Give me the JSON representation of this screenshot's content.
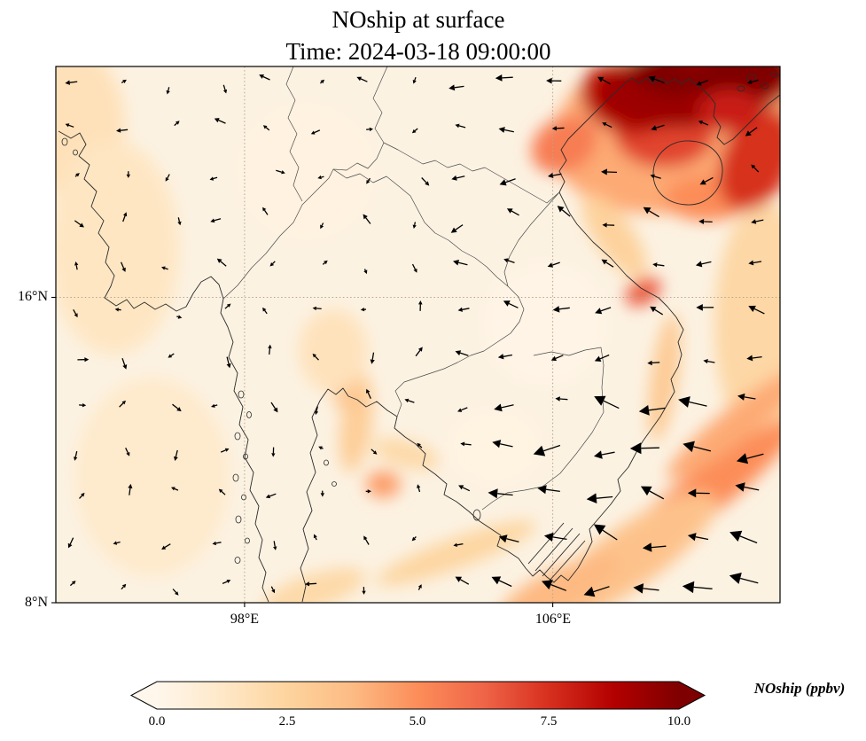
{
  "chart_data": {
    "type": "heatmap",
    "title": "NOship at surface",
    "subtitle": "Time: 2024-03-18 09:00:00",
    "variable": "NOship",
    "level": "surface",
    "time": "2024-03-18 09:00:00",
    "axes": {
      "lon_min": 93.1,
      "lon_max": 111.9,
      "lat_min": 8.0,
      "lat_max": 22.05,
      "lat_ticks": [
        {
          "label": "16°N",
          "value": 16
        },
        {
          "label": "8°N",
          "value": 8
        }
      ],
      "lon_ticks": [
        {
          "label": "98°E",
          "value": 98
        },
        {
          "label": "106°E",
          "value": 106
        }
      ],
      "grid": "dotted"
    },
    "colorbar": {
      "label": "NOship (ppbv)",
      "ticks": [
        "0.0",
        "2.5",
        "5.0",
        "7.5",
        "10.0"
      ],
      "tick_values": [
        0,
        2.5,
        5,
        7.5,
        10
      ],
      "vmin": 0,
      "vmax": 10,
      "extend": "both",
      "orientation": "horizontal"
    },
    "colormap": {
      "name": "OrRd",
      "stops": [
        "#fff7ec",
        "#fee8c8",
        "#fdd49e",
        "#fdbb84",
        "#fc8d59",
        "#ef6548",
        "#d7301f",
        "#b30000",
        "#7f0000"
      ]
    },
    "hotspots": [
      {
        "lon": 105.8,
        "lat": 15.3,
        "rx": 1.6,
        "ry": 1.6,
        "rot": 0,
        "value": 0.25
      },
      {
        "lon": 99.6,
        "lat": 19.3,
        "rx": 1.8,
        "ry": 1.8,
        "rot": 0,
        "value": 0.4
      },
      {
        "lon": 104.5,
        "lat": 12.1,
        "rx": 1.3,
        "ry": 1.1,
        "rot": 0,
        "value": 0.35
      },
      {
        "lon": 93.6,
        "lat": 20.5,
        "rx": 1.3,
        "ry": 2.0,
        "rot": 0,
        "value": 1.7
      },
      {
        "lon": 94.6,
        "lat": 17.3,
        "rx": 1.7,
        "ry": 2.8,
        "rot": 0,
        "value": 1.4
      },
      {
        "lon": 95.6,
        "lat": 11.3,
        "rx": 2.0,
        "ry": 2.6,
        "rot": 0,
        "value": 1.1
      },
      {
        "lon": 100.3,
        "lat": 14.6,
        "rx": 0.9,
        "ry": 1.1,
        "rot": 0,
        "value": 1.6
      },
      {
        "lon": 111.5,
        "lat": 15.3,
        "rx": 1.3,
        "ry": 3.2,
        "rot": 0,
        "value": 2.3
      },
      {
        "lon": 109.5,
        "lat": 20.6,
        "rx": 3.6,
        "ry": 2.3,
        "rot": -15,
        "value": 4.2
      },
      {
        "lon": 109.6,
        "lat": 10.6,
        "rx": 3.5,
        "ry": 0.6,
        "rot": -38,
        "value": 5.0
      },
      {
        "lon": 110.8,
        "lat": 12.7,
        "rx": 2.3,
        "ry": 0.45,
        "rot": -38,
        "value": 4.2
      },
      {
        "lon": 108.0,
        "lat": 9.2,
        "rx": 2.7,
        "ry": 0.8,
        "rot": -35,
        "value": 3.4
      },
      {
        "lon": 106.2,
        "lat": 8.4,
        "rx": 1.7,
        "ry": 0.5,
        "rot": -25,
        "value": 3.8
      },
      {
        "lon": 103.5,
        "lat": 9.3,
        "rx": 2.2,
        "ry": 0.4,
        "rot": -20,
        "value": 2.4
      },
      {
        "lon": 99.8,
        "lat": 8.3,
        "rx": 1.4,
        "ry": 0.45,
        "rot": -18,
        "value": 2.2
      },
      {
        "lon": 100.9,
        "lat": 12.7,
        "rx": 0.4,
        "ry": 1.3,
        "rot": 8,
        "value": 2.8
      },
      {
        "lon": 102.2,
        "lat": 11.9,
        "rx": 0.9,
        "ry": 0.35,
        "rot": 15,
        "value": 2.2
      },
      {
        "lon": 108.9,
        "lat": 13.9,
        "rx": 0.35,
        "ry": 1.7,
        "rot": 8,
        "value": 3.0
      },
      {
        "lon": 107.6,
        "lat": 17.6,
        "rx": 0.5,
        "ry": 1.3,
        "rot": -35,
        "value": 2.6
      },
      {
        "lon": 100.7,
        "lat": 13.35,
        "rx": 0.4,
        "ry": 0.3,
        "rot": 0,
        "value": 3.2
      },
      {
        "lon": 101.6,
        "lat": 11.1,
        "rx": 0.45,
        "ry": 0.35,
        "rot": 0,
        "value": 4.6
      },
      {
        "lon": 108.35,
        "lat": 16.15,
        "rx": 0.5,
        "ry": 0.32,
        "rot": -30,
        "value": 6.5
      },
      {
        "lon": 106.3,
        "lat": 20.0,
        "rx": 0.9,
        "ry": 0.7,
        "rot": -30,
        "value": 5.5
      },
      {
        "lon": 108.9,
        "lat": 20.3,
        "rx": 1.3,
        "ry": 0.9,
        "rot": 0,
        "value": 7.0
      },
      {
        "lon": 110.0,
        "lat": 18.6,
        "rx": 1.1,
        "ry": 0.6,
        "rot": 0,
        "value": 5.0
      },
      {
        "lon": 111.3,
        "lat": 19.6,
        "rx": 0.9,
        "ry": 1.4,
        "rot": 25,
        "value": 7.5
      },
      {
        "lon": 107.9,
        "lat": 21.2,
        "rx": 1.2,
        "ry": 0.9,
        "rot": 20,
        "value": 8.5
      },
      {
        "lon": 109.8,
        "lat": 21.6,
        "rx": 2.6,
        "ry": 1.1,
        "rot": -8,
        "value": 9.3
      },
      {
        "lon": 110.9,
        "lat": 21.9,
        "rx": 1.3,
        "ry": 0.6,
        "rot": -10,
        "value": 10
      },
      {
        "lon": 108.9,
        "lat": 21.8,
        "rx": 0.9,
        "ry": 0.5,
        "rot": 15,
        "value": 10
      },
      {
        "lon": 110.6,
        "lat": 20.9,
        "rx": 0.8,
        "ry": 0.55,
        "rot": 0,
        "value": 8.0
      }
    ],
    "wind": {
      "description": "surface wind vectors; strong northeasterly monsoon flow over the South China Sea (arrows pointing west-southwest), weak variable winds over land and the Bay of Bengal",
      "grid_nx": 15,
      "grid_ny": 12,
      "seed": 13,
      "regions": [
        {
          "name": "south-china-sea-strong",
          "lon_min": 104.3,
          "lat_max": 13.2,
          "angle_min": 160,
          "angle_spread": 55,
          "len_min": 22,
          "len_spread": 12
        },
        {
          "name": "vietnam-coast-moderate",
          "lon_min": 104.5,
          "lat_max": 18.5,
          "angle_min": 150,
          "angle_spread": 70,
          "len_min": 13,
          "len_spread": 8
        },
        {
          "name": "gulf-of-tonkin-moderate",
          "lon_min": 103.5,
          "lat_max": 22.1,
          "angle_min": 140,
          "angle_spread": 90,
          "len_min": 11,
          "len_spread": 9
        },
        {
          "name": "weak-variable",
          "lon_min": -999,
          "lat_max": 99,
          "angle_min": 0,
          "angle_spread": 360,
          "len_min": 6,
          "len_spread": 8
        }
      ]
    }
  }
}
